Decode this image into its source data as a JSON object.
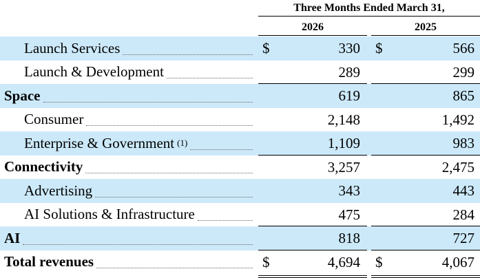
{
  "header": {
    "period": "Three Months Ended March 31,",
    "years": [
      "2026",
      "2025"
    ]
  },
  "rows": [
    {
      "label": "Launch Services",
      "bold": false,
      "shaded": true,
      "currency": "$",
      "v2026": "330",
      "v2025": "566"
    },
    {
      "label": "Launch & Development",
      "bold": false,
      "shaded": false,
      "currency": "",
      "v2026": "289",
      "v2025": "299"
    },
    {
      "label": "Space",
      "bold": true,
      "shaded": true,
      "currency": "",
      "v2026": "619",
      "v2025": "865"
    },
    {
      "label": "Consumer",
      "bold": false,
      "shaded": false,
      "currency": "",
      "v2026": "2,148",
      "v2025": "1,492"
    },
    {
      "label": "Enterprise & Government",
      "footnote": "(1)",
      "bold": false,
      "shaded": true,
      "currency": "",
      "v2026": "1,109",
      "v2025": "983"
    },
    {
      "label": "Connectivity",
      "bold": true,
      "shaded": false,
      "currency": "",
      "v2026": "3,257",
      "v2025": "2,475"
    },
    {
      "label": "Advertising",
      "bold": false,
      "shaded": true,
      "currency": "",
      "v2026": "343",
      "v2025": "443"
    },
    {
      "label": "AI Solutions & Infrastructure",
      "bold": false,
      "shaded": false,
      "currency": "",
      "v2026": "475",
      "v2025": "284"
    },
    {
      "label": "AI",
      "bold": true,
      "shaded": true,
      "currency": "",
      "v2026": "818",
      "v2025": "727"
    },
    {
      "label": "Total revenues",
      "bold": true,
      "shaded": false,
      "currency": "$",
      "v2026": "4,694",
      "v2025": "4,067"
    }
  ]
}
